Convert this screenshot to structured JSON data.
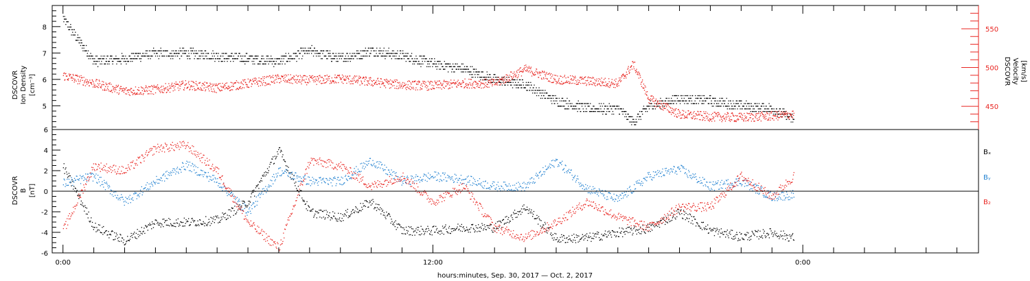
{
  "chart_data": [
    {
      "type": "scatter",
      "panel": "plasma",
      "ylabel_left": [
        "DSCOVR",
        "Ion Density",
        "[cm⁻³]"
      ],
      "ylabel_right": [
        "DSCOVR",
        "Velocity",
        "[km/s]"
      ],
      "ylim_left": [
        4.1,
        8.8
      ],
      "ylim_right": [
        420,
        580
      ],
      "left_ticks": [
        "5",
        "6",
        "7",
        "8"
      ],
      "right_ticks": [
        "450",
        "500",
        "550"
      ],
      "x_hours": [
        0,
        1,
        2,
        3,
        4,
        5,
        6,
        7,
        8,
        9,
        10,
        11,
        12,
        13,
        14,
        15,
        16,
        17,
        18,
        18.5,
        19,
        20,
        21,
        22,
        23,
        23.7
      ],
      "series": [
        {
          "color": "#000000",
          "axis": "left",
          "values": [
            8.3,
            6.7,
            6.8,
            7.0,
            7.0,
            6.9,
            6.8,
            6.7,
            7.1,
            6.8,
            7.1,
            6.9,
            6.6,
            6.4,
            6.0,
            5.8,
            5.2,
            4.9,
            4.9,
            4.4,
            5.0,
            5.3,
            5.2,
            5.0,
            4.9,
            4.5
          ]
        },
        {
          "color": "#e8231f",
          "axis": "right",
          "values": [
            490,
            480,
            470,
            472,
            478,
            474,
            480,
            486,
            484,
            486,
            482,
            478,
            477,
            480,
            480,
            498,
            485,
            483,
            480,
            505,
            460,
            440,
            437,
            436,
            438,
            440
          ]
        }
      ]
    },
    {
      "type": "scatter",
      "panel": "magnetic-field",
      "ylabel_left": [
        "DSCOVR",
        "B",
        "[nT]"
      ],
      "ylim": [
        -6,
        6
      ],
      "left_ticks": [
        "-6",
        "-4",
        "-2",
        "0",
        "2",
        "4",
        "6"
      ],
      "x_hours": [
        0,
        1,
        2,
        3,
        4,
        5,
        6,
        7,
        8,
        9,
        10,
        11,
        12,
        13,
        14,
        15,
        16,
        17,
        18,
        19,
        20,
        21,
        22,
        23,
        23.7
      ],
      "series": [
        {
          "name": "Bₓ",
          "color": "#000000",
          "values": [
            2.4,
            -3.4,
            -4.8,
            -3.0,
            -3.0,
            -2.8,
            -1.0,
            4.0,
            -2.0,
            -2.5,
            -1.0,
            -3.8,
            -3.8,
            -3.5,
            -3.5,
            -1.5,
            -4.6,
            -4.5,
            -4.0,
            -3.6,
            -2.0,
            -3.8,
            -4.4,
            -4.0,
            -4.5
          ]
        },
        {
          "name": "Bᵧ",
          "color": "#2080d0",
          "values": [
            0.8,
            1.5,
            -1.0,
            1.0,
            2.6,
            1.0,
            -2.0,
            2.0,
            1.0,
            1.0,
            3.0,
            1.0,
            1.5,
            1.2,
            0.5,
            0.5,
            3.0,
            0.3,
            -0.8,
            1.5,
            2.2,
            0.5,
            1.0,
            -0.5,
            -0.3
          ]
        },
        {
          "name": "B₂",
          "color": "#e8231f",
          "values": [
            -3.8,
            2.5,
            2.0,
            4.2,
            4.5,
            2.0,
            -3.0,
            -5.5,
            3.0,
            2.5,
            0.5,
            1.5,
            -1.0,
            0.5,
            -3.5,
            -4.5,
            -3.0,
            -1.0,
            -2.5,
            -3.5,
            -1.5,
            -1.5,
            1.5,
            -0.5,
            1.5
          ]
        }
      ]
    }
  ],
  "x_axis": {
    "ticks": [
      "0:00",
      "12:00",
      "0:00"
    ],
    "tick_hours": [
      0,
      12,
      24
    ],
    "xlim_hours": [
      -0.35,
      29.7
    ],
    "xlabel": "hours:minutes, Sep. 30, 2017 — Oct. 2, 2017"
  }
}
